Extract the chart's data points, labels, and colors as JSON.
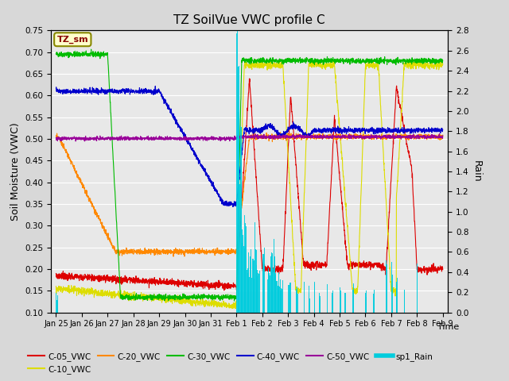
{
  "title": "TZ SoilVue VWC profile C",
  "xlabel": "Time",
  "ylabel_left": "Soil Moisture (VWC)",
  "ylabel_right": "Rain",
  "ylim_left": [
    0.1,
    0.75
  ],
  "ylim_right": [
    0.0,
    2.8
  ],
  "bg_color": "#d8d8d8",
  "plot_bg_color": "#e8e8e8",
  "legend_box_color": "#ffffcc",
  "legend_box_edge": "#888800",
  "colors": {
    "C05": "#dd0000",
    "C10": "#dddd00",
    "C20": "#ff8800",
    "C30": "#00bb00",
    "C40": "#0000cc",
    "C50": "#990099",
    "Rain": "#00ccdd"
  }
}
